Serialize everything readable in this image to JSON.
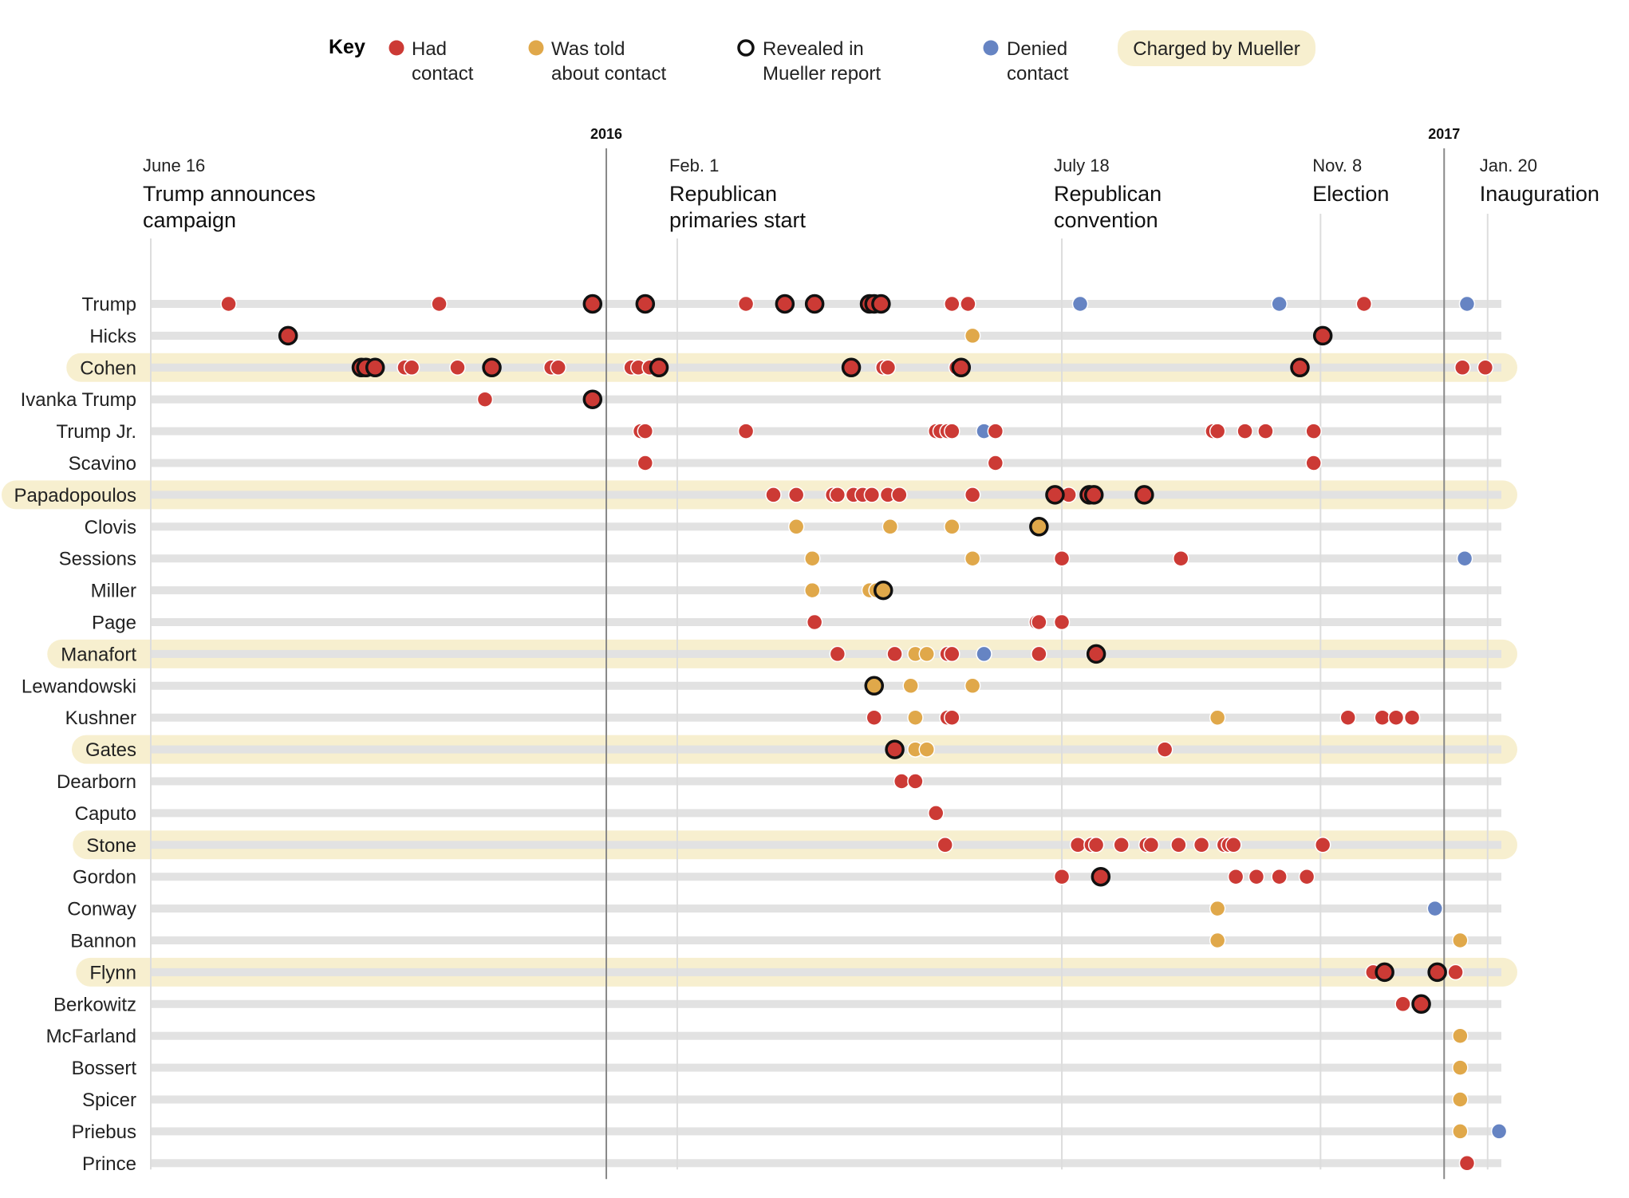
{
  "key": {
    "title": "Key",
    "items": [
      {
        "type": "had",
        "line1": "Had",
        "line2": "contact"
      },
      {
        "type": "told",
        "line1": "Was told",
        "line2": "about contact"
      },
      {
        "type": "revealed",
        "line1": "Revealed in",
        "line2": "Mueller report"
      },
      {
        "type": "denied",
        "line1": "Denied",
        "line2": "contact"
      }
    ],
    "charged_label": "Charged by Mueller"
  },
  "colors": {
    "had": "#cc3a35",
    "told": "#e0a84a",
    "denied": "#6684c3",
    "charged_band": "#f7efcf",
    "track": "#e2e2e2",
    "gridline": "#dddddd",
    "year_line": "#888888",
    "revealed_stroke": "#111111"
  },
  "chart_data": {
    "type": "scatter",
    "title": "",
    "x_axis": {
      "type": "date",
      "range": [
        "2015-06-16",
        "2017-01-26"
      ]
    },
    "year_markers": [
      {
        "label": "2016",
        "date": "2016-01-01"
      },
      {
        "label": "2017",
        "date": "2017-01-01"
      }
    ],
    "events": [
      {
        "date_label": "June 16",
        "name_lines": [
          "Trump announces",
          "campaign"
        ],
        "date": "2015-06-16"
      },
      {
        "date_label": "Feb. 1",
        "name_lines": [
          "Republican",
          "primaries start"
        ],
        "date": "2016-02-01"
      },
      {
        "date_label": "July 18",
        "name_lines": [
          "Republican",
          "convention"
        ],
        "date": "2016-07-18"
      },
      {
        "date_label": "Nov. 8",
        "name_lines": [
          "Election"
        ],
        "date": "2016-11-08"
      },
      {
        "date_label": "Jan. 20",
        "name_lines": [
          "Inauguration"
        ],
        "date": "2017-01-20"
      }
    ],
    "rows": [
      {
        "name": "Trump",
        "charged": false,
        "points": [
          [
            "2015-07-20",
            "had",
            false
          ],
          [
            "2015-10-20",
            "had",
            false
          ],
          [
            "2015-12-26",
            "had",
            true
          ],
          [
            "2016-01-18",
            "had",
            true
          ],
          [
            "2016-03-02",
            "had",
            false
          ],
          [
            "2016-03-19",
            "had",
            true
          ],
          [
            "2016-04-01",
            "had",
            true
          ],
          [
            "2016-04-25",
            "had",
            true
          ],
          [
            "2016-04-27",
            "had",
            true
          ],
          [
            "2016-04-30",
            "had",
            true
          ],
          [
            "2016-05-31",
            "had",
            false
          ],
          [
            "2016-06-07",
            "had",
            false
          ],
          [
            "2016-07-26",
            "denied",
            false
          ],
          [
            "2016-10-21",
            "denied",
            false
          ],
          [
            "2016-11-27",
            "had",
            false
          ],
          [
            "2017-01-11",
            "denied",
            false
          ]
        ]
      },
      {
        "name": "Hicks",
        "charged": false,
        "points": [
          [
            "2015-08-15",
            "had",
            true
          ],
          [
            "2016-06-09",
            "told",
            false
          ],
          [
            "2016-11-09",
            "had",
            true
          ]
        ]
      },
      {
        "name": "Cohen",
        "charged": true,
        "points": [
          [
            "2015-09-16",
            "had",
            true
          ],
          [
            "2015-09-18",
            "had",
            true
          ],
          [
            "2015-09-22",
            "had",
            true
          ],
          [
            "2015-10-05",
            "had",
            false
          ],
          [
            "2015-10-08",
            "had",
            false
          ],
          [
            "2015-10-28",
            "had",
            false
          ],
          [
            "2015-11-12",
            "had",
            true
          ],
          [
            "2015-12-08",
            "had",
            false
          ],
          [
            "2015-12-11",
            "had",
            false
          ],
          [
            "2016-01-12",
            "had",
            false
          ],
          [
            "2016-01-15",
            "had",
            false
          ],
          [
            "2016-01-20",
            "had",
            false
          ],
          [
            "2016-01-24",
            "had",
            true
          ],
          [
            "2016-04-17",
            "had",
            true
          ],
          [
            "2016-05-01",
            "had",
            false
          ],
          [
            "2016-05-03",
            "had",
            false
          ],
          [
            "2016-06-02",
            "had",
            false
          ],
          [
            "2016-06-04",
            "had",
            true
          ],
          [
            "2016-10-30",
            "had",
            true
          ],
          [
            "2017-01-09",
            "had",
            false
          ],
          [
            "2017-01-19",
            "had",
            false
          ]
        ]
      },
      {
        "name": "Ivanka Trump",
        "charged": false,
        "points": [
          [
            "2015-11-09",
            "had",
            false
          ],
          [
            "2015-12-26",
            "had",
            true
          ]
        ]
      },
      {
        "name": "Trump Jr.",
        "charged": false,
        "points": [
          [
            "2016-01-16",
            "had",
            false
          ],
          [
            "2016-01-18",
            "had",
            false
          ],
          [
            "2016-03-02",
            "had",
            false
          ],
          [
            "2016-05-24",
            "had",
            false
          ],
          [
            "2016-05-26",
            "had",
            false
          ],
          [
            "2016-05-29",
            "had",
            false
          ],
          [
            "2016-05-31",
            "had",
            false
          ],
          [
            "2016-06-14",
            "denied",
            false
          ],
          [
            "2016-06-19",
            "had",
            false
          ],
          [
            "2016-09-22",
            "had",
            false
          ],
          [
            "2016-09-24",
            "had",
            false
          ],
          [
            "2016-10-06",
            "had",
            false
          ],
          [
            "2016-10-15",
            "had",
            false
          ],
          [
            "2016-11-05",
            "had",
            false
          ]
        ]
      },
      {
        "name": "Scavino",
        "charged": false,
        "points": [
          [
            "2016-01-18",
            "had",
            false
          ],
          [
            "2016-06-19",
            "had",
            false
          ],
          [
            "2016-11-05",
            "had",
            false
          ]
        ]
      },
      {
        "name": "Papadopoulos",
        "charged": true,
        "points": [
          [
            "2016-03-14",
            "had",
            false
          ],
          [
            "2016-03-24",
            "had",
            false
          ],
          [
            "2016-04-09",
            "had",
            false
          ],
          [
            "2016-04-11",
            "had",
            false
          ],
          [
            "2016-04-18",
            "had",
            false
          ],
          [
            "2016-04-22",
            "had",
            false
          ],
          [
            "2016-04-26",
            "had",
            false
          ],
          [
            "2016-05-03",
            "had",
            false
          ],
          [
            "2016-05-08",
            "had",
            false
          ],
          [
            "2016-06-09",
            "had",
            false
          ],
          [
            "2016-07-15",
            "had",
            true
          ],
          [
            "2016-07-21",
            "had",
            false
          ],
          [
            "2016-07-30",
            "had",
            true
          ],
          [
            "2016-08-01",
            "had",
            true
          ],
          [
            "2016-08-23",
            "had",
            true
          ]
        ]
      },
      {
        "name": "Clovis",
        "charged": false,
        "points": [
          [
            "2016-03-24",
            "told",
            false
          ],
          [
            "2016-05-04",
            "told",
            false
          ],
          [
            "2016-05-31",
            "told",
            false
          ],
          [
            "2016-07-08",
            "told",
            true
          ]
        ]
      },
      {
        "name": "Sessions",
        "charged": false,
        "points": [
          [
            "2016-03-31",
            "told",
            false
          ],
          [
            "2016-06-09",
            "told",
            false
          ],
          [
            "2016-07-18",
            "had",
            false
          ],
          [
            "2016-09-08",
            "had",
            false
          ],
          [
            "2017-01-10",
            "denied",
            false
          ]
        ]
      },
      {
        "name": "Miller",
        "charged": false,
        "points": [
          [
            "2016-03-31",
            "told",
            false
          ],
          [
            "2016-04-25",
            "told",
            false
          ],
          [
            "2016-04-28",
            "told",
            false
          ],
          [
            "2016-05-01",
            "told",
            true
          ]
        ]
      },
      {
        "name": "Page",
        "charged": false,
        "points": [
          [
            "2016-04-01",
            "had",
            false
          ],
          [
            "2016-07-07",
            "had",
            false
          ],
          [
            "2016-07-08",
            "had",
            false
          ],
          [
            "2016-07-18",
            "had",
            false
          ]
        ]
      },
      {
        "name": "Manafort",
        "charged": true,
        "points": [
          [
            "2016-04-11",
            "had",
            false
          ],
          [
            "2016-05-06",
            "had",
            false
          ],
          [
            "2016-05-15",
            "told",
            false
          ],
          [
            "2016-05-20",
            "told",
            false
          ],
          [
            "2016-05-29",
            "had",
            false
          ],
          [
            "2016-05-31",
            "had",
            false
          ],
          [
            "2016-06-14",
            "denied",
            false
          ],
          [
            "2016-07-08",
            "had",
            false
          ],
          [
            "2016-08-01",
            "had",
            false
          ],
          [
            "2016-08-02",
            "had",
            true
          ]
        ]
      },
      {
        "name": "Lewandowski",
        "charged": false,
        "points": [
          [
            "2016-04-27",
            "told",
            true
          ],
          [
            "2016-05-13",
            "told",
            false
          ],
          [
            "2016-06-09",
            "told",
            false
          ]
        ]
      },
      {
        "name": "Kushner",
        "charged": false,
        "points": [
          [
            "2016-04-27",
            "had",
            false
          ],
          [
            "2016-05-15",
            "told",
            false
          ],
          [
            "2016-05-29",
            "had",
            false
          ],
          [
            "2016-05-31",
            "had",
            false
          ],
          [
            "2016-09-24",
            "told",
            false
          ],
          [
            "2016-11-20",
            "had",
            false
          ],
          [
            "2016-12-05",
            "had",
            false
          ],
          [
            "2016-12-11",
            "had",
            false
          ],
          [
            "2016-12-18",
            "had",
            false
          ]
        ]
      },
      {
        "name": "Gates",
        "charged": true,
        "points": [
          [
            "2016-05-06",
            "had",
            true
          ],
          [
            "2016-05-15",
            "told",
            false
          ],
          [
            "2016-05-20",
            "told",
            false
          ],
          [
            "2016-09-01",
            "had",
            false
          ]
        ]
      },
      {
        "name": "Dearborn",
        "charged": false,
        "points": [
          [
            "2016-05-09",
            "had",
            false
          ],
          [
            "2016-05-15",
            "had",
            false
          ]
        ]
      },
      {
        "name": "Caputo",
        "charged": false,
        "points": [
          [
            "2016-05-24",
            "had",
            false
          ]
        ]
      },
      {
        "name": "Stone",
        "charged": true,
        "points": [
          [
            "2016-05-28",
            "had",
            false
          ],
          [
            "2016-07-25",
            "had",
            false
          ],
          [
            "2016-07-31",
            "had",
            false
          ],
          [
            "2016-08-02",
            "had",
            false
          ],
          [
            "2016-08-13",
            "had",
            false
          ],
          [
            "2016-08-24",
            "had",
            false
          ],
          [
            "2016-08-26",
            "had",
            false
          ],
          [
            "2016-09-07",
            "had",
            false
          ],
          [
            "2016-09-17",
            "had",
            false
          ],
          [
            "2016-09-27",
            "had",
            false
          ],
          [
            "2016-09-29",
            "had",
            false
          ],
          [
            "2016-10-01",
            "had",
            false
          ],
          [
            "2016-11-09",
            "had",
            false
          ]
        ]
      },
      {
        "name": "Gordon",
        "charged": false,
        "points": [
          [
            "2016-07-18",
            "had",
            false
          ],
          [
            "2016-08-04",
            "had",
            true
          ],
          [
            "2016-10-02",
            "had",
            false
          ],
          [
            "2016-10-11",
            "had",
            false
          ],
          [
            "2016-10-21",
            "had",
            false
          ],
          [
            "2016-11-02",
            "had",
            false
          ]
        ]
      },
      {
        "name": "Conway",
        "charged": false,
        "points": [
          [
            "2016-09-24",
            "told",
            false
          ],
          [
            "2016-12-28",
            "denied",
            false
          ]
        ]
      },
      {
        "name": "Bannon",
        "charged": false,
        "points": [
          [
            "2016-09-24",
            "told",
            false
          ],
          [
            "2017-01-08",
            "told",
            false
          ]
        ]
      },
      {
        "name": "Flynn",
        "charged": true,
        "points": [
          [
            "2016-12-01",
            "had",
            false
          ],
          [
            "2016-12-06",
            "had",
            true
          ],
          [
            "2016-12-29",
            "had",
            true
          ],
          [
            "2017-01-06",
            "had",
            false
          ]
        ]
      },
      {
        "name": "Berkowitz",
        "charged": false,
        "points": [
          [
            "2016-12-14",
            "had",
            false
          ],
          [
            "2016-12-22",
            "had",
            true
          ]
        ]
      },
      {
        "name": "McFarland",
        "charged": false,
        "points": [
          [
            "2017-01-08",
            "told",
            false
          ]
        ]
      },
      {
        "name": "Bossert",
        "charged": false,
        "points": [
          [
            "2017-01-08",
            "told",
            false
          ]
        ]
      },
      {
        "name": "Spicer",
        "charged": false,
        "points": [
          [
            "2017-01-08",
            "told",
            false
          ]
        ]
      },
      {
        "name": "Priebus",
        "charged": false,
        "points": [
          [
            "2017-01-08",
            "told",
            false
          ],
          [
            "2017-01-25",
            "denied",
            false
          ]
        ]
      },
      {
        "name": "Prince",
        "charged": false,
        "points": [
          [
            "2017-01-11",
            "had",
            false
          ]
        ]
      }
    ]
  }
}
